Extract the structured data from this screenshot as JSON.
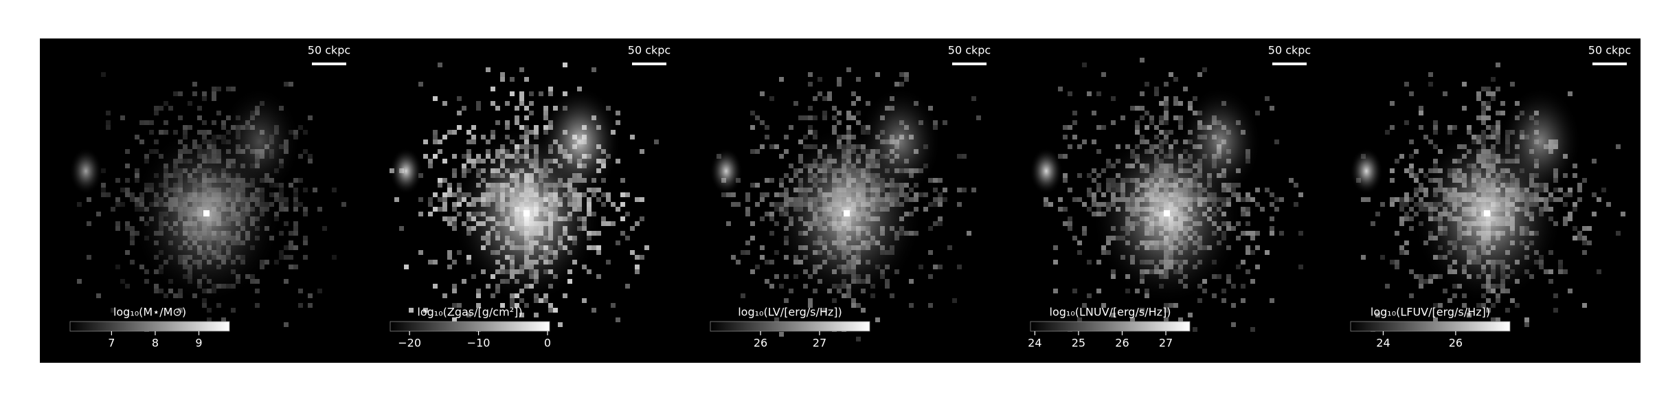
{
  "chart_data": [
    {
      "type": "image",
      "scale_label": "50 ckpc",
      "colorbar": {
        "label": "log₁₀(M⋆/M⊙)",
        "lim": [
          6.05,
          9.7
        ],
        "ticks": [
          7,
          8,
          9
        ]
      }
    },
    {
      "type": "image",
      "scale_label": "50 ckpc",
      "colorbar": {
        "label": "log₁₀(Zgas/[g/cm²])",
        "lim": [
          -22.8,
          0.3
        ],
        "ticks": [
          {
            "value": -20,
            "label": "−20"
          },
          {
            "value": -10,
            "label": "−10"
          },
          0
        ]
      }
    },
    {
      "type": "image",
      "scale_label": "50 ckpc",
      "colorbar": {
        "label": "log₁₀(LV/[erg/s/Hz])",
        "lim": [
          25.15,
          27.85
        ],
        "ticks": [
          26,
          27
        ]
      }
    },
    {
      "type": "image",
      "scale_label": "50 ckpc",
      "colorbar": {
        "label": "log₁₀(LNUV/[erg/s/Hz])",
        "lim": [
          23.9,
          27.55
        ],
        "ticks": [
          24,
          25,
          26,
          27
        ]
      }
    },
    {
      "type": "image",
      "scale_label": "50 ckpc",
      "colorbar": {
        "label": "log₁₀(LFUV/[erg/s/Hz])",
        "lim": [
          23.1,
          27.5
        ],
        "ticks": [
          24,
          26
        ]
      }
    }
  ]
}
